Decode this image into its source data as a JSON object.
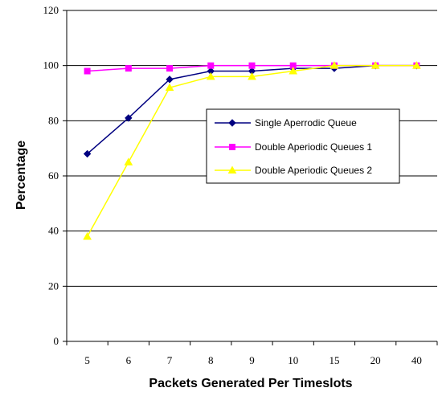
{
  "chart_data": {
    "type": "line",
    "title": "",
    "xlabel": "Packets Generated Per Timeslots",
    "ylabel": "Percentage",
    "categories": [
      "5",
      "6",
      "7",
      "8",
      "9",
      "10",
      "15",
      "20",
      "40"
    ],
    "ylim": [
      0,
      120
    ],
    "yticks": [
      0,
      20,
      40,
      60,
      80,
      100,
      120
    ],
    "grid": "horizontal",
    "legend": "center-right",
    "series": [
      {
        "name": "Single Aperrodic Queue",
        "color": "#000080",
        "marker": "diamond",
        "values": [
          68,
          81,
          95,
          98,
          98,
          99,
          99,
          100,
          100
        ]
      },
      {
        "name": "Double Aperiodic Queues 1",
        "color": "#FF00FF",
        "marker": "square",
        "values": [
          98,
          99,
          99,
          100,
          100,
          100,
          100,
          100,
          100
        ]
      },
      {
        "name": "Double Aperiodic Queues 2",
        "color": "#FFFF00",
        "marker": "triangle",
        "values": [
          38,
          65,
          92,
          96,
          96,
          98,
          100,
          100,
          100
        ]
      }
    ]
  }
}
